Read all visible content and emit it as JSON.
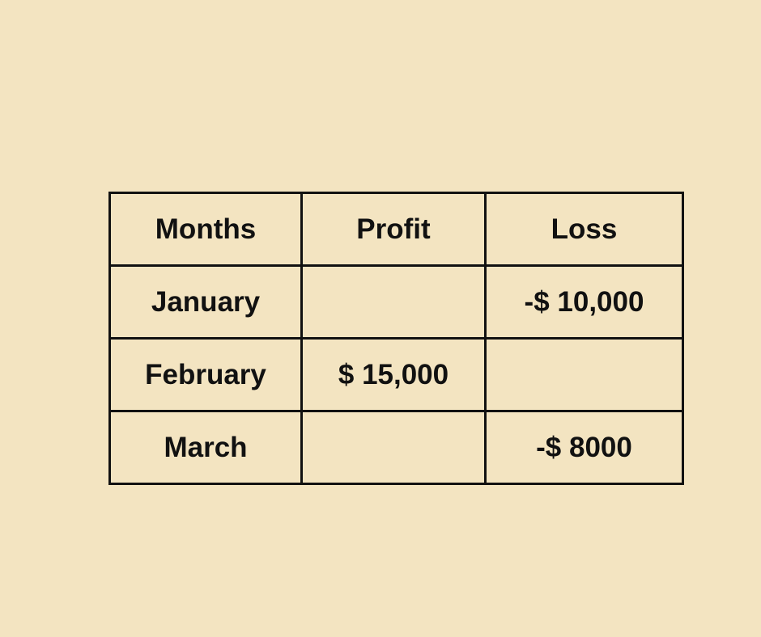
{
  "colors": {
    "background": "#f3e4c1",
    "border": "#111111",
    "text": "#111111"
  },
  "chart_data": {
    "type": "table",
    "columns": [
      "Months",
      "Profit",
      "Loss"
    ],
    "rows": [
      {
        "month": "January",
        "profit": "",
        "loss": "-$ 10,000"
      },
      {
        "month": "February",
        "profit": "$ 15,000",
        "loss": ""
      },
      {
        "month": "March",
        "profit": "",
        "loss": "-$ 8000"
      }
    ]
  }
}
